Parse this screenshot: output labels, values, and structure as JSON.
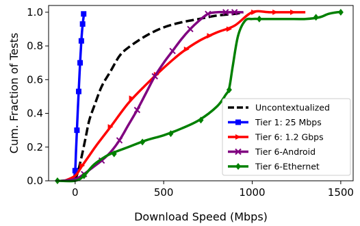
{
  "chart_data": {
    "type": "line",
    "title": "",
    "xlabel": "Download Speed (Mbps)",
    "ylabel": "Cum. Fraction of Tests",
    "xlim": [
      -150,
      1570
    ],
    "ylim": [
      0,
      1.04
    ],
    "xticks": [
      0,
      500,
      1000,
      1500
    ],
    "yticks": [
      0.0,
      0.2,
      0.4,
      0.6,
      0.8,
      1.0
    ],
    "xtick_labels": [
      "0",
      "500",
      "1000",
      "1500"
    ],
    "ytick_labels": [
      "0.0",
      "0.2",
      "0.4",
      "0.6",
      "0.8",
      "1.0"
    ],
    "grid": false,
    "legend_position": "lower-right",
    "series": [
      {
        "name": "Uncontextualized",
        "color": "#000000",
        "style": "dashed",
        "marker": "none",
        "x": [
          0,
          20,
          40,
          60,
          80,
          110,
          150,
          200,
          250,
          300,
          400,
          500,
          600,
          700,
          800,
          900,
          950
        ],
        "y": [
          0.0,
          0.07,
          0.16,
          0.26,
          0.36,
          0.45,
          0.56,
          0.65,
          0.74,
          0.79,
          0.86,
          0.91,
          0.94,
          0.96,
          0.98,
          0.99,
          1.0
        ]
      },
      {
        "name": "Tier 1: 25 Mbps",
        "color": "#0000ff",
        "marker": "square",
        "x": [
          -10,
          0,
          5,
          10,
          15,
          20,
          25,
          30,
          35,
          40,
          45,
          50
        ],
        "y": [
          0.0,
          0.06,
          0.18,
          0.3,
          0.42,
          0.53,
          0.64,
          0.74,
          0.83,
          0.9,
          0.95,
          0.99
        ],
        "marker_x": [
          0,
          10,
          20,
          28,
          35,
          42,
          48
        ],
        "marker_y": [
          0.06,
          0.3,
          0.53,
          0.7,
          0.83,
          0.93,
          0.99
        ]
      },
      {
        "name": "Tier 6: 1.2 Gbps",
        "color": "#ff0000",
        "marker": "triangle-right",
        "x": [
          -60,
          0,
          40,
          80,
          120,
          200,
          300,
          400,
          500,
          600,
          700,
          800,
          900,
          1000,
          1100,
          1200,
          1300
        ],
        "y": [
          0.0,
          0.03,
          0.09,
          0.15,
          0.21,
          0.32,
          0.46,
          0.57,
          0.67,
          0.76,
          0.83,
          0.88,
          0.92,
          1.0,
          1.0,
          1.0,
          1.0
        ],
        "marker_x": [
          40,
          200,
          320,
          460,
          630,
          760,
          870,
          1010,
          1130,
          1230
        ],
        "marker_y": [
          0.09,
          0.32,
          0.49,
          0.63,
          0.78,
          0.86,
          0.9,
          1.0,
          1.0,
          1.0
        ]
      },
      {
        "name": "Tier 6-Android",
        "color": "#800080",
        "marker": "x",
        "x": [
          -80,
          0,
          50,
          100,
          150,
          200,
          250,
          300,
          350,
          400,
          450,
          500,
          550,
          600,
          650,
          700,
          750,
          800,
          850,
          900,
          950
        ],
        "y": [
          0.0,
          0.01,
          0.04,
          0.08,
          0.12,
          0.17,
          0.24,
          0.33,
          0.42,
          0.52,
          0.62,
          0.7,
          0.77,
          0.84,
          0.9,
          0.95,
          0.99,
          1.0,
          1.0,
          1.0,
          1.0
        ],
        "marker_x": [
          50,
          150,
          250,
          350,
          450,
          550,
          650,
          750,
          850,
          900
        ],
        "marker_y": [
          0.04,
          0.12,
          0.24,
          0.42,
          0.62,
          0.77,
          0.9,
          0.99,
          1.0,
          1.0
        ]
      },
      {
        "name": "Tier 6-Ethernet",
        "color": "#008000",
        "marker": "diamond",
        "x": [
          -100,
          0,
          50,
          100,
          150,
          200,
          300,
          400,
          500,
          600,
          700,
          800,
          850,
          870,
          890,
          920,
          960,
          1000,
          1050,
          1100,
          1200,
          1300,
          1380,
          1430,
          1480,
          1510
        ],
        "y": [
          0.0,
          0.0,
          0.03,
          0.09,
          0.13,
          0.16,
          0.2,
          0.24,
          0.27,
          0.31,
          0.36,
          0.44,
          0.51,
          0.55,
          0.68,
          0.86,
          0.95,
          0.96,
          0.96,
          0.96,
          0.96,
          0.96,
          0.97,
          0.99,
          1.0,
          1.0
        ],
        "marker_x": [
          -100,
          50,
          220,
          380,
          540,
          710,
          870,
          1040,
          1360,
          1500
        ],
        "marker_y": [
          0.0,
          0.03,
          0.16,
          0.23,
          0.28,
          0.36,
          0.54,
          0.96,
          0.97,
          1.0
        ]
      }
    ]
  }
}
